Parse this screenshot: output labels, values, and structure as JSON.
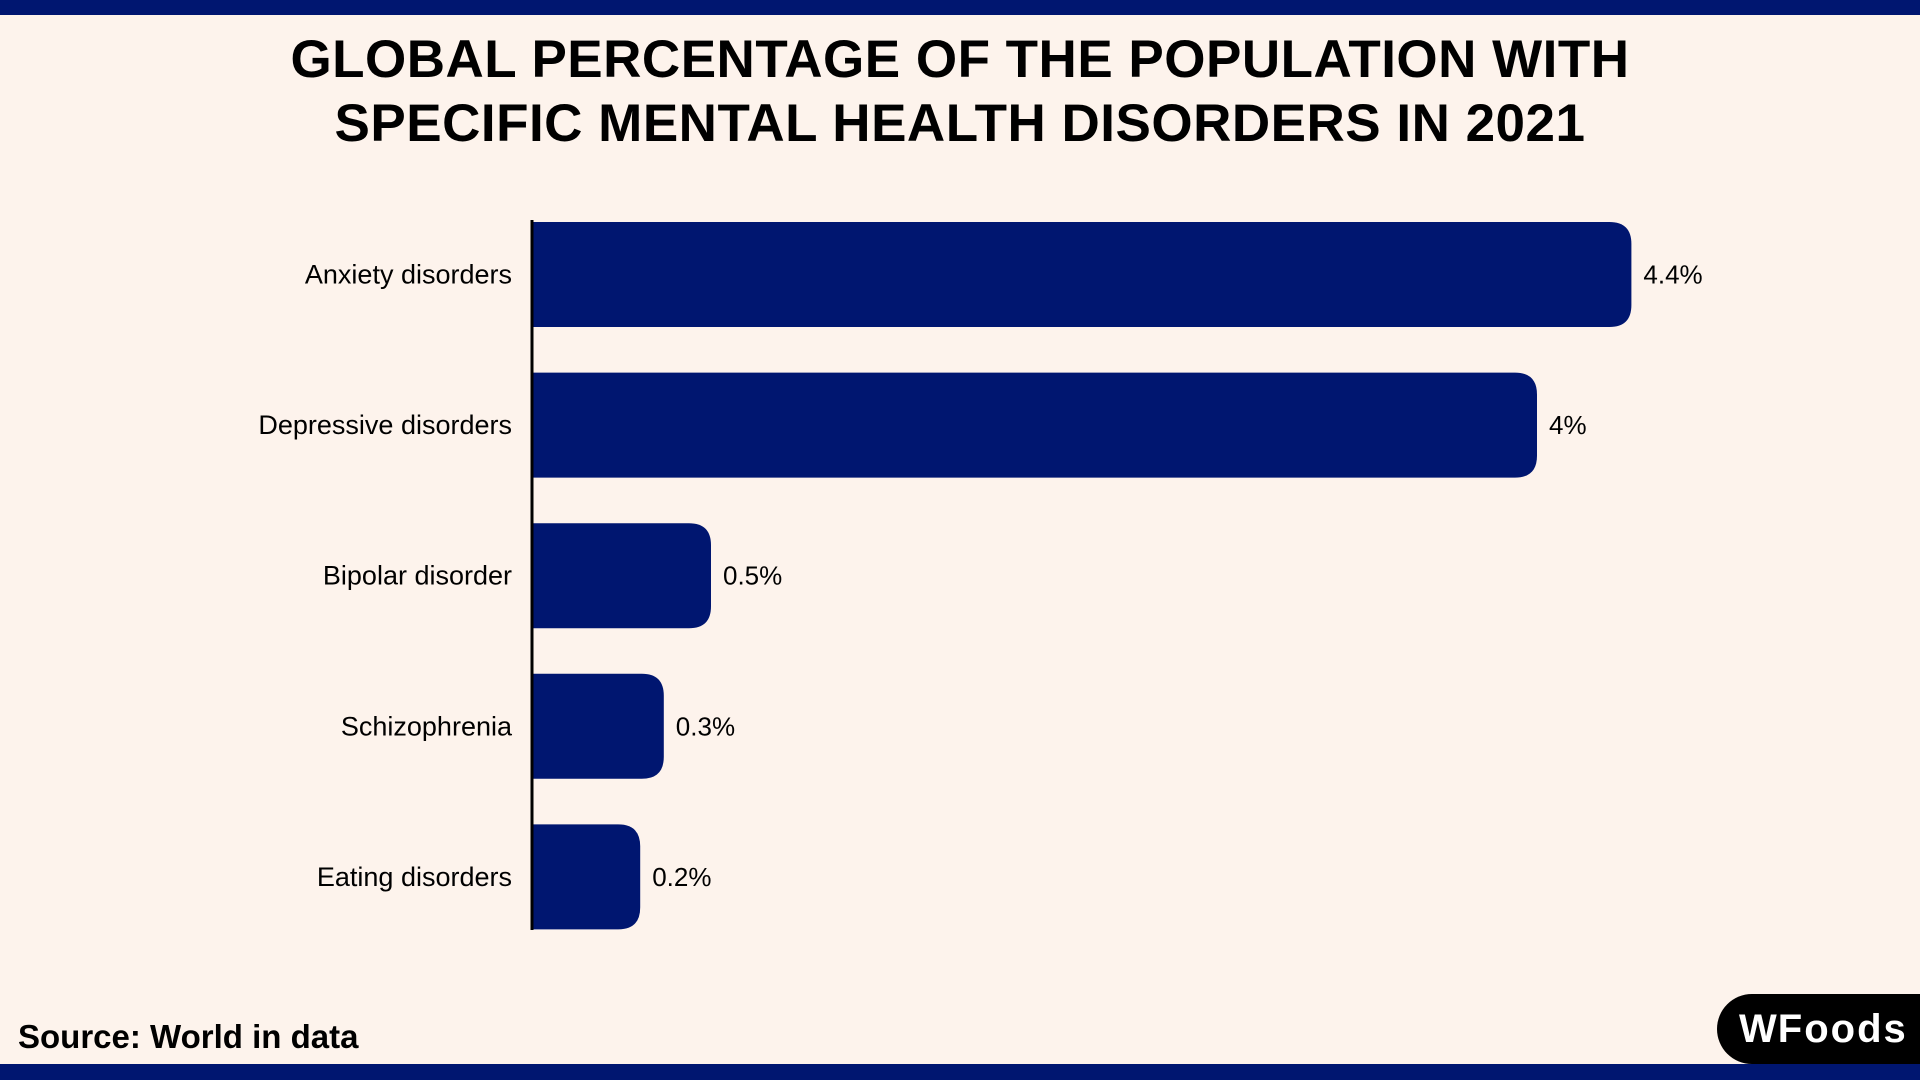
{
  "title_line1": "GLOBAL PERCENTAGE OF THE POPULATION WITH",
  "title_line2": "SPECIFIC MENTAL HEALTH DISORDERS IN 2021",
  "source": "Source: World in data",
  "logo_text": "WFoods",
  "colors": {
    "bar": "#001670",
    "background": "#fdf3ec",
    "band": "#001670"
  },
  "chart_data": {
    "type": "bar",
    "orientation": "horizontal",
    "title": "GLOBAL PERCENTAGE OF THE POPULATION WITH SPECIFIC MENTAL HEALTH DISORDERS IN 2021",
    "categories": [
      "Anxiety disorders",
      "Depressive disorders",
      "Bipolar disorder",
      "Schizophrenia",
      "Eating disorders"
    ],
    "values": [
      4.4,
      4,
      0.5,
      0.3,
      0.2
    ],
    "value_labels": [
      "4.4%",
      "4%",
      "0.5%",
      "0.3%",
      "0.2%"
    ],
    "unit": "%",
    "grid": false,
    "legend": "none"
  }
}
